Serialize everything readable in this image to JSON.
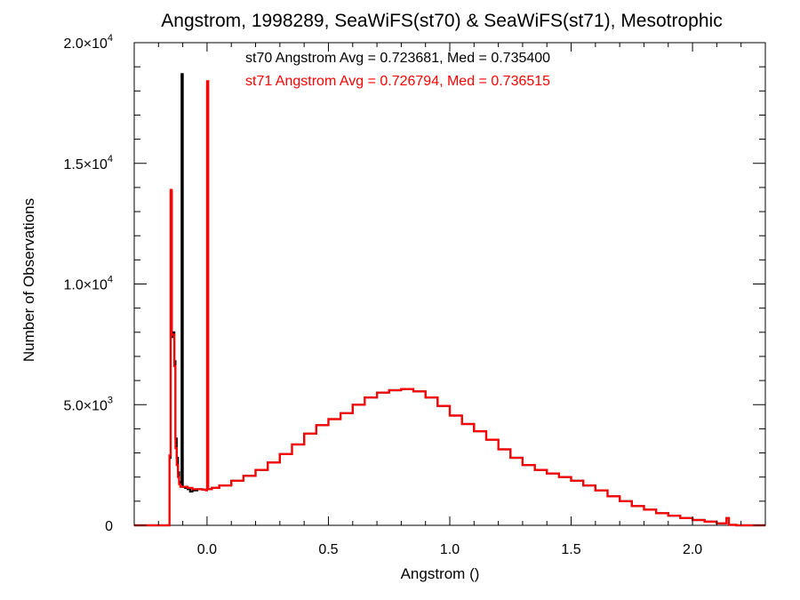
{
  "chart_data": {
    "type": "line",
    "title": "Angstrom, 1998289, SeaWiFS(st70) & SeaWiFS(st71), Mesotrophic",
    "xlabel": "Angstrom ()",
    "ylabel": "Number of Observations",
    "xlim": [
      -0.3,
      2.3
    ],
    "ylim": [
      0,
      20000
    ],
    "grid": false,
    "x_ticks": [
      {
        "value": 0.0,
        "label": "0.0"
      },
      {
        "value": 0.5,
        "label": "0.5"
      },
      {
        "value": 1.0,
        "label": "1.0"
      },
      {
        "value": 1.5,
        "label": "1.5"
      },
      {
        "value": 2.0,
        "label": "2.0"
      }
    ],
    "y_ticks": [
      {
        "value": 0,
        "mant": "0",
        "exp": ""
      },
      {
        "value": 5000,
        "mant": "5.0×10",
        "exp": "3"
      },
      {
        "value": 10000,
        "mant": "1.0×10",
        "exp": "4"
      },
      {
        "value": 15000,
        "mant": "1.5×10",
        "exp": "4"
      },
      {
        "value": 20000,
        "mant": "2.0×10",
        "exp": "4"
      }
    ],
    "annotations": [
      {
        "text": "st70 Angstrom Avg = 0.723681, Med = 0.735400",
        "color": "#000000"
      },
      {
        "text": "st71 Angstrom Avg = 0.726794, Med = 0.736515",
        "color": "#ff0000"
      }
    ],
    "series": [
      {
        "color": "#000000",
        "points": [
          [
            -0.3,
            0
          ],
          [
            -0.16,
            0
          ],
          [
            -0.155,
            2800
          ],
          [
            -0.15,
            13800
          ],
          [
            -0.145,
            7800
          ],
          [
            -0.14,
            8000
          ],
          [
            -0.135,
            6800
          ],
          [
            -0.13,
            3600
          ],
          [
            -0.125,
            2800
          ],
          [
            -0.12,
            2200
          ],
          [
            -0.115,
            1800
          ],
          [
            -0.11,
            1700
          ],
          [
            -0.105,
            18700
          ],
          [
            -0.1,
            1600
          ],
          [
            -0.09,
            1550
          ],
          [
            -0.08,
            1500
          ],
          [
            -0.07,
            1400
          ],
          [
            -0.06,
            1450
          ],
          [
            -0.04,
            1500
          ],
          [
            -0.02,
            1480
          ],
          [
            0.0,
            1500
          ],
          [
            0.02,
            1550
          ],
          [
            0.05,
            1650
          ],
          [
            0.1,
            1850
          ],
          [
            0.15,
            2050
          ],
          [
            0.2,
            2300
          ],
          [
            0.25,
            2600
          ],
          [
            0.3,
            2950
          ],
          [
            0.35,
            3350
          ],
          [
            0.4,
            3800
          ],
          [
            0.45,
            4150
          ],
          [
            0.5,
            4400
          ],
          [
            0.55,
            4650
          ],
          [
            0.6,
            5000
          ],
          [
            0.65,
            5300
          ],
          [
            0.7,
            5500
          ],
          [
            0.75,
            5600
          ],
          [
            0.8,
            5650
          ],
          [
            0.85,
            5550
          ],
          [
            0.9,
            5300
          ],
          [
            0.95,
            4950
          ],
          [
            1.0,
            4550
          ],
          [
            1.05,
            4200
          ],
          [
            1.1,
            3900
          ],
          [
            1.15,
            3550
          ],
          [
            1.2,
            3150
          ],
          [
            1.25,
            2800
          ],
          [
            1.3,
            2500
          ],
          [
            1.35,
            2300
          ],
          [
            1.4,
            2150
          ],
          [
            1.45,
            2000
          ],
          [
            1.5,
            1850
          ],
          [
            1.55,
            1650
          ],
          [
            1.6,
            1450
          ],
          [
            1.65,
            1200
          ],
          [
            1.7,
            1000
          ],
          [
            1.75,
            800
          ],
          [
            1.8,
            650
          ],
          [
            1.85,
            500
          ],
          [
            1.9,
            400
          ],
          [
            1.95,
            300
          ],
          [
            2.0,
            220
          ],
          [
            2.05,
            150
          ],
          [
            2.1,
            80
          ],
          [
            2.13,
            90
          ],
          [
            2.14,
            300
          ],
          [
            2.15,
            20
          ],
          [
            2.18,
            0
          ],
          [
            2.3,
            0
          ]
        ]
      },
      {
        "color": "#ff0000",
        "points": [
          [
            -0.3,
            0
          ],
          [
            -0.16,
            0
          ],
          [
            -0.155,
            2900
          ],
          [
            -0.15,
            13900
          ],
          [
            -0.145,
            7900
          ],
          [
            -0.14,
            7900
          ],
          [
            -0.135,
            6600
          ],
          [
            -0.13,
            3200
          ],
          [
            -0.125,
            2500
          ],
          [
            -0.12,
            2000
          ],
          [
            -0.115,
            1700
          ],
          [
            -0.11,
            1600
          ],
          [
            -0.105,
            1600
          ],
          [
            -0.1,
            1600
          ],
          [
            -0.09,
            1600
          ],
          [
            -0.08,
            1550
          ],
          [
            -0.07,
            1550
          ],
          [
            -0.06,
            1500
          ],
          [
            -0.04,
            1500
          ],
          [
            -0.02,
            1480
          ],
          [
            -0.005,
            1450
          ],
          [
            0.0,
            18400
          ],
          [
            0.005,
            1500
          ],
          [
            0.02,
            1550
          ],
          [
            0.05,
            1650
          ],
          [
            0.1,
            1850
          ],
          [
            0.15,
            2050
          ],
          [
            0.2,
            2300
          ],
          [
            0.25,
            2600
          ],
          [
            0.3,
            2950
          ],
          [
            0.35,
            3350
          ],
          [
            0.4,
            3800
          ],
          [
            0.45,
            4150
          ],
          [
            0.5,
            4400
          ],
          [
            0.55,
            4650
          ],
          [
            0.6,
            5000
          ],
          [
            0.65,
            5300
          ],
          [
            0.7,
            5500
          ],
          [
            0.75,
            5600
          ],
          [
            0.8,
            5650
          ],
          [
            0.85,
            5550
          ],
          [
            0.9,
            5300
          ],
          [
            0.95,
            4950
          ],
          [
            1.0,
            4550
          ],
          [
            1.05,
            4200
          ],
          [
            1.1,
            3900
          ],
          [
            1.15,
            3550
          ],
          [
            1.2,
            3150
          ],
          [
            1.25,
            2800
          ],
          [
            1.3,
            2500
          ],
          [
            1.35,
            2300
          ],
          [
            1.4,
            2150
          ],
          [
            1.45,
            2000
          ],
          [
            1.5,
            1850
          ],
          [
            1.55,
            1650
          ],
          [
            1.6,
            1450
          ],
          [
            1.65,
            1200
          ],
          [
            1.7,
            1000
          ],
          [
            1.75,
            800
          ],
          [
            1.8,
            650
          ],
          [
            1.85,
            500
          ],
          [
            1.9,
            400
          ],
          [
            1.95,
            300
          ],
          [
            2.0,
            220
          ],
          [
            2.05,
            150
          ],
          [
            2.1,
            80
          ],
          [
            2.13,
            90
          ],
          [
            2.14,
            300
          ],
          [
            2.15,
            20
          ],
          [
            2.18,
            0
          ],
          [
            2.3,
            0
          ]
        ]
      }
    ]
  }
}
